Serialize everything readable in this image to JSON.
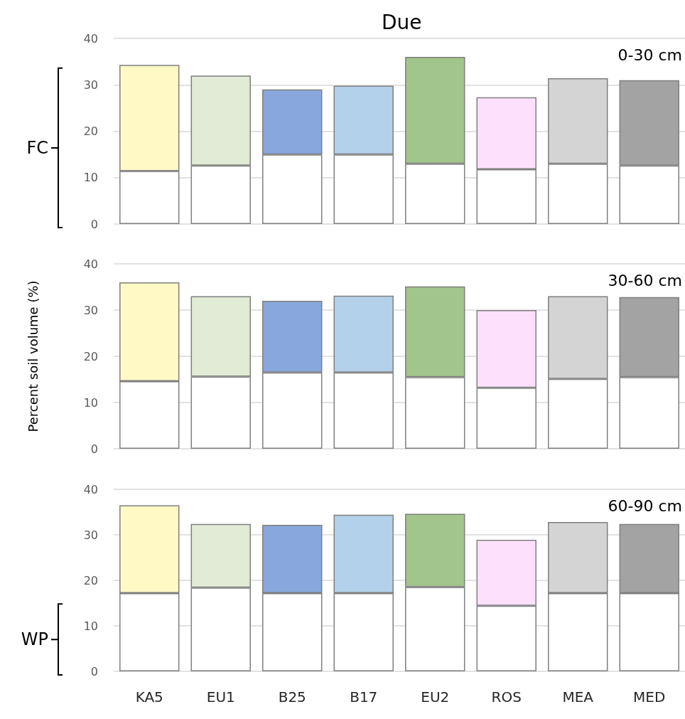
{
  "chart_data": [
    {
      "type": "bar",
      "title": "Due",
      "stacked": true,
      "grid": "y",
      "tick_labels": "y",
      "categories": [
        null,
        null,
        null,
        null,
        null,
        null,
        null,
        null
      ],
      "ylim": [
        0,
        40
      ],
      "yticks": [
        0,
        10,
        20,
        30,
        40
      ],
      "annotations": [
        "0-30 cm",
        "FC"
      ],
      "series": [
        {
          "color": "#ffffff",
          "values": [
            11.4,
            12.6,
            15,
            15,
            13,
            11.8,
            13,
            12.6
          ]
        },
        {
          "colors": [
            "#fff9c6",
            "#e1ebd5",
            "#88a8dc",
            "#b4d1eb",
            "#a2c58b",
            "#fde0fc",
            "#d4d4d4",
            "#a3a3a3"
          ],
          "values": [
            22.9,
            19.4,
            14,
            14.8,
            23,
            15.5,
            18.4,
            18.4
          ]
        }
      ]
    },
    {
      "type": "bar",
      "ylabel": "Percent soil volume (%)",
      "stacked": true,
      "grid": "y",
      "tick_labels": "y",
      "categories": [
        null,
        null,
        null,
        null,
        null,
        null,
        null,
        null
      ],
      "ylim": [
        0,
        40
      ],
      "yticks": [
        0,
        10,
        20,
        30,
        40
      ],
      "annotations": [
        "30-60 cm"
      ],
      "series": [
        {
          "color": "#ffffff",
          "values": [
            14.6,
            15.6,
            16.5,
            16.5,
            15.5,
            13.2,
            15.1,
            15.5
          ]
        },
        {
          "colors": [
            "#fff9c6",
            "#e1ebd5",
            "#88a8dc",
            "#b4d1eb",
            "#a2c58b",
            "#fde0fc",
            "#d4d4d4",
            "#a3a3a3"
          ],
          "values": [
            21.4,
            17.4,
            15.5,
            16.6,
            19.6,
            16.8,
            17.9,
            17.3
          ]
        }
      ]
    },
    {
      "type": "bar",
      "stacked": true,
      "grid": "y",
      "categories": [
        "KA5",
        "EU1",
        "B25",
        "B17",
        "EU2",
        "ROS",
        "MEA",
        "MED"
      ],
      "ylim": [
        0,
        40
      ],
      "yticks": [
        0,
        10,
        20,
        30,
        40
      ],
      "annotations": [
        "60-90 cm",
        "WP"
      ],
      "series": [
        {
          "color": "#ffffff",
          "values": [
            17.2,
            18.4,
            17.2,
            17.2,
            18.5,
            14.4,
            17.2,
            17.2
          ]
        },
        {
          "colors": [
            "#fff9c6",
            "#e1ebd5",
            "#88a8dc",
            "#b4d1eb",
            "#a2c58b",
            "#fde0fc",
            "#d4d4d4",
            "#a3a3a3"
          ],
          "values": [
            19.3,
            14,
            15,
            17.2,
            16.1,
            14.5,
            15.6,
            15.2
          ]
        }
      ]
    }
  ]
}
